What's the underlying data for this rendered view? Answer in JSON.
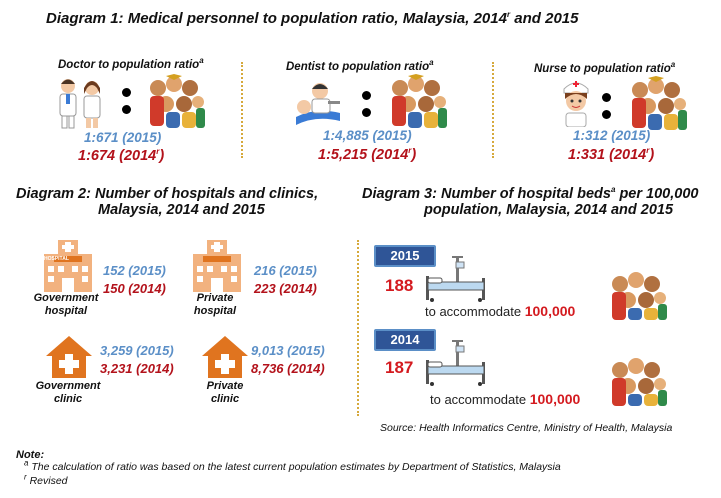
{
  "diagram1": {
    "title": "Diagram 1: Medical personnel to population ratio, Malaysia, 2014",
    "title_sup": "r",
    "title_tail": " and 2015",
    "items": [
      {
        "label": "Doctor to population ratio",
        "sup": "a",
        "value_2015": "1:671 (2015)",
        "value_2014": "1:674 (2014",
        "sup_r": "r",
        "close": ")"
      },
      {
        "label": "Dentist to population ratio",
        "sup": "a",
        "value_2015": "1:4,885 (2015)",
        "value_2014": "1:5,215 (2014",
        "sup_r": "r",
        "close": ")"
      },
      {
        "label": "Nurse to population  ratio",
        "sup": "a",
        "value_2015": "1:312 (2015)",
        "value_2014": "1:331 (2014",
        "sup_r": "r",
        "close": ")"
      }
    ]
  },
  "diagram2": {
    "title_line1": "Diagram 2: Number of hospitals and clinics,",
    "title_line2": "Malaysia, 2014 and 2015",
    "govt_hospital": {
      "label1": "Government",
      "label2": "hospital",
      "v2015": "152 (2015)",
      "v2014": "150 (2014)"
    },
    "private_hospital": {
      "label1": "Private",
      "label2": "hospital",
      "v2015": "216 (2015)",
      "v2014": "223 (2014)"
    },
    "govt_clinic": {
      "label1": "Government",
      "label2": "clinic",
      "v2015": "3,259 (2015)",
      "v2014": "3,231 (2014)"
    },
    "private_clinic": {
      "label1": "Private",
      "label2": "clinic",
      "v2015": "9,013 (2015)",
      "v2014": "8,736 (2014)"
    },
    "hospital_sign": "HOSPITAL"
  },
  "diagram3": {
    "title_line1a": "Diagram 3: Number of hospital beds",
    "title_sup": "a",
    "title_line1b": " per 100,000",
    "title_line2": "population, Malaysia, 2014 and 2015",
    "rows": [
      {
        "year": "2015",
        "beds": "188",
        "text": "to accommodate",
        "pop": "100,000"
      },
      {
        "year": "2014",
        "beds": "187",
        "text": "to accommodate",
        "pop": "100,000"
      }
    ]
  },
  "source": "Source: Health Informatics Centre, Ministry of Health, Malaysia",
  "notes": {
    "heading": "Note:",
    "a_mark": "a",
    "a_text": " The calculation of ratio was based on the latest current population estimates by Department of Statistics, Malaysia",
    "r_mark": "r",
    "r_text": " Revised"
  },
  "colors": {
    "blue": "#5b8fc7",
    "red": "#b3121b",
    "accent_red": "#d41a1f",
    "year_box": "#2f5597",
    "divider": "#d6a93c",
    "building": "#f2b27f",
    "clinic": "#e0741f"
  },
  "icons": [
    "doctors-icon",
    "dentist-icon",
    "nurse-icon",
    "crowd-icon",
    "hospital-building-icon",
    "clinic-house-icon",
    "hospital-bed-icon"
  ]
}
